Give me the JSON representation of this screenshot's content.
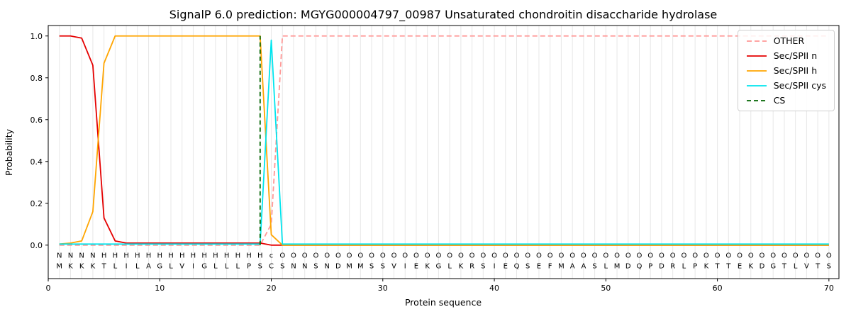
{
  "chart_data": {
    "type": "line",
    "title": "SignalP 6.0 prediction: MGYG000004797_00987 Unsaturated chondroitin disaccharide hydrolase",
    "xlabel": "Protein sequence",
    "ylabel": "Probability",
    "xlim": [
      0,
      70.9
    ],
    "ylim": [
      -0.16,
      1.05
    ],
    "xticks": [
      0,
      10,
      20,
      30,
      40,
      50,
      60,
      70
    ],
    "yticks": [
      0.0,
      0.2,
      0.4,
      0.6,
      0.8,
      1.0
    ],
    "grid": true,
    "grid_color": "#e7e7e7",
    "legend_position": "upper right",
    "sequence": "MKKKTLILAGLVIGLLLPSCSNNSNDMMSSVIEKGLKRSIEQSEFMAASLMDQPDRLPKTTEKDGTLVTS",
    "region_labels": "NNNNHHHHHHHHHHHHHHHcOOOOOOOOOOOOOOOOOOOOOOOOOOOOOOOOOOOOOOOOOOOOOOOOOO",
    "region_colors": {
      "N": "#e50000",
      "H": "#ffa500",
      "c": "#00e5ee",
      "O": "#777777"
    },
    "series": [
      {
        "name": "OTHER",
        "color": "#ff9896",
        "dash": "7 4",
        "values": [
          0,
          0,
          0,
          0,
          0,
          0,
          0,
          0,
          0,
          0,
          0,
          0,
          0,
          0,
          0,
          0,
          0,
          0,
          0,
          0.1,
          1,
          1,
          1,
          1,
          1,
          1,
          1,
          1,
          1,
          1,
          1,
          1,
          1,
          1,
          1,
          1,
          1,
          1,
          1,
          1,
          1,
          1,
          1,
          1,
          1,
          1,
          1,
          1,
          1,
          1,
          1,
          1,
          1,
          1,
          1,
          1,
          1,
          1,
          1,
          1,
          1,
          1,
          1,
          1,
          1,
          1,
          1,
          1,
          1,
          1
        ]
      },
      {
        "name": "Sec/SPII n",
        "color": "#e50000",
        "dash": null,
        "values": [
          1,
          1,
          0.99,
          0.86,
          0.13,
          0.02,
          0.01,
          0.01,
          0.01,
          0.01,
          0.01,
          0.01,
          0.01,
          0.01,
          0.01,
          0.01,
          0.01,
          0.01,
          0.01,
          0,
          0,
          0,
          0,
          0,
          0,
          0,
          0,
          0,
          0,
          0,
          0,
          0,
          0,
          0,
          0,
          0,
          0,
          0,
          0,
          0,
          0,
          0,
          0,
          0,
          0,
          0,
          0,
          0,
          0,
          0,
          0,
          0,
          0,
          0,
          0,
          0,
          0,
          0,
          0,
          0,
          0,
          0,
          0,
          0,
          0,
          0,
          0,
          0,
          0,
          0
        ]
      },
      {
        "name": "Sec/SPII h",
        "color": "#ffa500",
        "dash": null,
        "values": [
          0.005,
          0.01,
          0.02,
          0.16,
          0.87,
          1,
          1,
          1,
          1,
          1,
          1,
          1,
          1,
          1,
          1,
          1,
          1,
          1,
          1,
          0.05,
          0,
          0,
          0,
          0,
          0,
          0,
          0,
          0,
          0,
          0,
          0,
          0,
          0,
          0,
          0,
          0,
          0,
          0,
          0,
          0,
          0,
          0,
          0,
          0,
          0,
          0,
          0,
          0,
          0,
          0,
          0,
          0,
          0,
          0,
          0,
          0,
          0,
          0,
          0,
          0,
          0,
          0,
          0,
          0,
          0,
          0,
          0,
          0,
          0,
          0
        ]
      },
      {
        "name": "Sec/SPII cys",
        "color": "#00e5ee",
        "dash": null,
        "values": [
          0.005,
          0.005,
          0.005,
          0.005,
          0.005,
          0.005,
          0.005,
          0.005,
          0.005,
          0.005,
          0.005,
          0.005,
          0.005,
          0.005,
          0.005,
          0.005,
          0.005,
          0.005,
          0.005,
          0.98,
          0.005,
          0.005,
          0.005,
          0.005,
          0.005,
          0.005,
          0.005,
          0.005,
          0.005,
          0.005,
          0.005,
          0.005,
          0.005,
          0.005,
          0.005,
          0.005,
          0.005,
          0.005,
          0.005,
          0.005,
          0.005,
          0.005,
          0.005,
          0.005,
          0.005,
          0.005,
          0.005,
          0.005,
          0.005,
          0.005,
          0.005,
          0.005,
          0.005,
          0.005,
          0.005,
          0.005,
          0.005,
          0.005,
          0.005,
          0.005,
          0.005,
          0.005,
          0.005,
          0.005,
          0.005,
          0.005,
          0.005,
          0.005,
          0.005,
          0.005
        ]
      }
    ],
    "cs_marker": {
      "name": "CS",
      "color": "#006400",
      "dash": "6 4",
      "x": 19
    }
  }
}
